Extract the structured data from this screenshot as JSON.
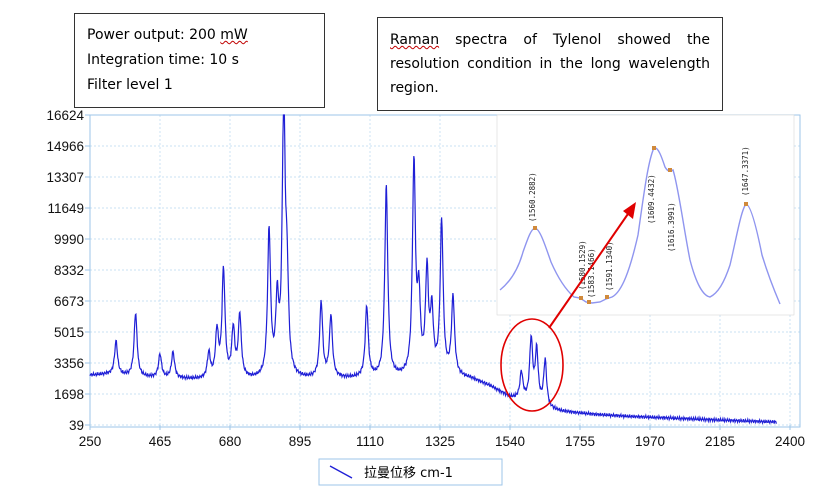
{
  "notes": {
    "settings": {
      "power_label": "Power output: 200 ",
      "power_unit": "mW",
      "integration": "Integration time: 10 s",
      "filter": "Filter level 1"
    },
    "caption": {
      "first_word": "Raman",
      "rest": " spectra of Tylenol showed the resolution condition in the long wavelength region."
    }
  },
  "colors": {
    "spectrum": "#1f1fd6",
    "inset_spectrum": "#8f95ef",
    "plot_background": "#ffffff",
    "frame": "#9ec6e8",
    "grid": "#b8d8ef",
    "ellipse": "#e00000",
    "arrow": "#e00000",
    "peak_marker": "#d08a3c"
  },
  "chart_data": {
    "type": "line",
    "xlabel": "拉曼位移 cm-1",
    "ylabel": "",
    "xlim": [
      250,
      2400
    ],
    "ylim": [
      39,
      16624
    ],
    "x_ticks": [
      250,
      465,
      680,
      895,
      1110,
      1325,
      1540,
      1755,
      1970,
      2185,
      2400
    ],
    "y_ticks": [
      39,
      1698,
      3356,
      5015,
      6673,
      8332,
      9990,
      11649,
      13307,
      14966,
      16624
    ],
    "grid": true,
    "legend_position": "bottom",
    "series": [
      {
        "name": "拉曼位移 cm-1",
        "baseline": [
          [
            250,
            2700
          ],
          [
            300,
            2750
          ],
          [
            400,
            2600
          ],
          [
            600,
            2450
          ],
          [
            800,
            2450
          ],
          [
            1000,
            2500
          ],
          [
            1200,
            2550
          ],
          [
            1350,
            2650
          ],
          [
            1420,
            2500
          ],
          [
            1480,
            2100
          ],
          [
            1540,
            1500
          ],
          [
            1600,
            1250
          ],
          [
            1650,
            900
          ],
          [
            1700,
            750
          ],
          [
            1800,
            600
          ],
          [
            1900,
            500
          ],
          [
            2000,
            430
          ],
          [
            2100,
            360
          ],
          [
            2200,
            290
          ],
          [
            2300,
            230
          ],
          [
            2400,
            180
          ]
        ],
        "peaks": [
          [
            330,
            4500
          ],
          [
            390,
            6000
          ],
          [
            465,
            3800
          ],
          [
            505,
            3900
          ],
          [
            615,
            3800
          ],
          [
            640,
            4900
          ],
          [
            660,
            8200
          ],
          [
            690,
            5000
          ],
          [
            710,
            5800
          ],
          [
            800,
            10300
          ],
          [
            825,
            6200
          ],
          [
            845,
            16624
          ],
          [
            855,
            7000
          ],
          [
            960,
            6500
          ],
          [
            990,
            5800
          ],
          [
            1100,
            6300
          ],
          [
            1160,
            12800
          ],
          [
            1245,
            13800
          ],
          [
            1260,
            6500
          ],
          [
            1285,
            8000
          ],
          [
            1300,
            5800
          ],
          [
            1330,
            10800
          ],
          [
            1365,
            6800
          ],
          [
            1575,
            2800
          ],
          [
            1605,
            4500
          ],
          [
            1622,
            3900
          ],
          [
            1648,
            3400
          ]
        ]
      }
    ],
    "inset": {
      "type": "line",
      "peak_labels": [
        {
          "label": "(1560.2882)",
          "x": 1560.2882
        },
        {
          "label": "(1580.1529)",
          "x": 1580.1529
        },
        {
          "label": "(1583.1466)",
          "x": 1583.1466
        },
        {
          "label": "(1591.1340)",
          "x": 1591.134
        },
        {
          "label": "(1609.4432)",
          "x": 1609.4432
        },
        {
          "label": "(1616.3991)",
          "x": 1616.3991
        },
        {
          "label": "(1647.3371)",
          "x": 1647.3371
        }
      ]
    }
  }
}
